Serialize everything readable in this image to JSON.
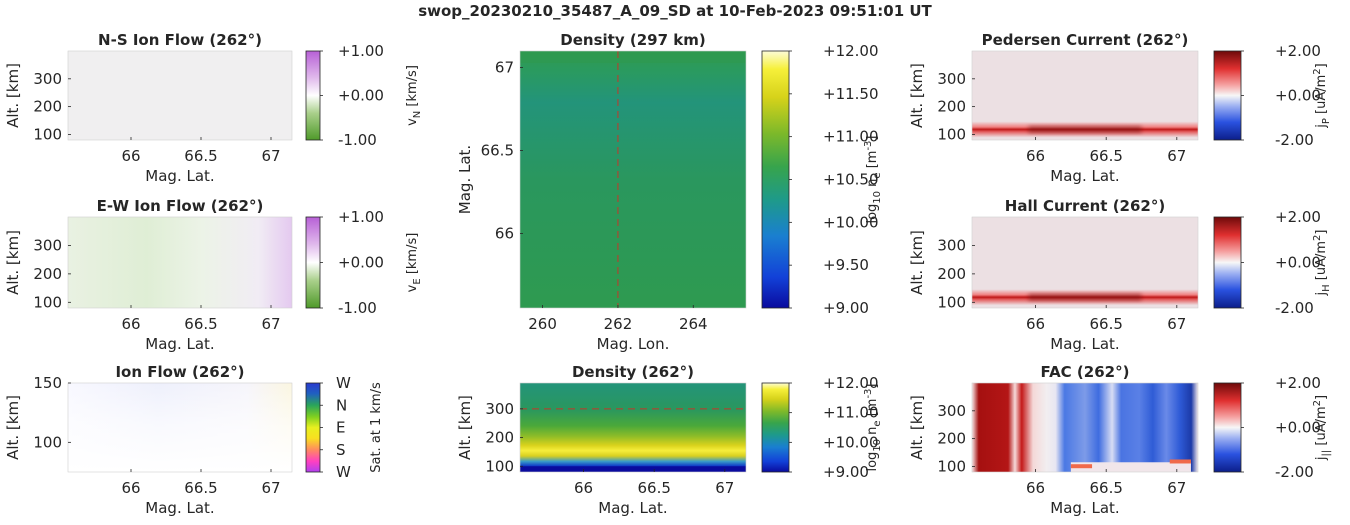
{
  "suptitle": "swop_20230210_35487_A_09_SD at 10-Feb-2023 09:51:01 UT",
  "colors": {
    "axis": "#262626",
    "density_bg": "#2f9a4f",
    "current_bg": "#ece0e3",
    "dashed_line": "#c0392b"
  },
  "chart_data": [
    {
      "id": "ns-ion-flow",
      "type": "heatmap",
      "title": "N-S Ion Flow (262°)",
      "xlabel": "Mag. Lat.",
      "ylabel": "Alt. [km]",
      "xticks": [
        "66",
        "66.5",
        "67"
      ],
      "xtick_values": [
        66,
        66.5,
        67
      ],
      "yticks": [
        "100",
        "200",
        "300"
      ],
      "ytick_values": [
        100,
        200,
        300
      ],
      "xlim": [
        65.55,
        67.15
      ],
      "ylim": [
        80,
        400
      ],
      "colorbar": {
        "label": "v_N [km/s]",
        "label_main": "v",
        "label_sub": "N",
        "label_suffix": " [km/s]",
        "ticks": [
          "+1.00",
          "+0.00",
          "-1.00"
        ],
        "tick_values": [
          1,
          0,
          -1
        ],
        "range": [
          -1,
          1
        ],
        "colormap": "green-white-purple"
      }
    },
    {
      "id": "ew-ion-flow",
      "type": "heatmap",
      "title": "E-W Ion Flow (262°)",
      "xlabel": "Mag. Lat.",
      "ylabel": "Alt. [km]",
      "xticks": [
        "66",
        "66.5",
        "67"
      ],
      "xtick_values": [
        66,
        66.5,
        67
      ],
      "yticks": [
        "100",
        "200",
        "300"
      ],
      "ytick_values": [
        100,
        200,
        300
      ],
      "xlim": [
        65.55,
        67.15
      ],
      "ylim": [
        80,
        400
      ],
      "colorbar": {
        "label": "v_E [km/s]",
        "label_main": "v",
        "label_sub": "E",
        "label_suffix": " [km/s]",
        "ticks": [
          "+1.00",
          "+0.00",
          "-1.00"
        ],
        "tick_values": [
          1,
          0,
          -1
        ],
        "range": [
          -1,
          1
        ],
        "colormap": "green-white-purple"
      }
    },
    {
      "id": "ion-flow",
      "type": "heatmap",
      "title": "Ion Flow (262°)",
      "xlabel": "Mag. Lat.",
      "ylabel": "Alt. [km]",
      "xticks": [
        "66",
        "66.5",
        "67"
      ],
      "xtick_values": [
        66,
        66.5,
        67
      ],
      "yticks": [
        "100",
        "150"
      ],
      "ytick_values": [
        100,
        150
      ],
      "xlim": [
        65.55,
        67.15
      ],
      "ylim": [
        75,
        150
      ],
      "colorbar": {
        "label": "Sat. at 1 km/s",
        "ticks": [
          "W",
          "N",
          "E",
          "S",
          "W"
        ],
        "tick_fractions": [
          1,
          0.75,
          0.5,
          0.25,
          0
        ],
        "colormap": "direction-hue"
      }
    },
    {
      "id": "density-map",
      "type": "heatmap",
      "title": "Density (297 km)",
      "xlabel": "Mag. Lon.",
      "ylabel": "Mag. Lat.",
      "xticks": [
        "260",
        "262",
        "264"
      ],
      "xtick_values": [
        260,
        262,
        264
      ],
      "yticks": [
        "66",
        "66.5",
        "67"
      ],
      "ytick_values": [
        66,
        66.5,
        67
      ],
      "xlim": [
        259.4,
        265.4
      ],
      "ylim": [
        65.55,
        67.1
      ],
      "reference_line_x": 262,
      "colorbar": {
        "label": "log10 n_e [m^-3]",
        "ticks": [
          "+12.00",
          "+11.50",
          "+11.00",
          "+10.50",
          "+10.00",
          "+9.50",
          "+9.00"
        ],
        "tick_values": [
          12,
          11.5,
          11,
          10.5,
          10,
          9.5,
          9
        ],
        "range": [
          9,
          12
        ],
        "colormap": "parula"
      }
    },
    {
      "id": "density-profile",
      "type": "heatmap",
      "title": "Density (262°)",
      "xlabel": "Mag. Lat.",
      "ylabel": "Alt. [km]",
      "xticks": [
        "66",
        "66.5",
        "67"
      ],
      "xtick_values": [
        66,
        66.5,
        67
      ],
      "yticks": [
        "100",
        "200",
        "300"
      ],
      "ytick_values": [
        100,
        200,
        300
      ],
      "xlim": [
        65.55,
        67.15
      ],
      "ylim": [
        80,
        390
      ],
      "reference_line_y": 300,
      "colorbar": {
        "label": "log10 n_e [m^-3]",
        "ticks": [
          "+12.00",
          "+11.00",
          "+10.00",
          "+9.00"
        ],
        "tick_values": [
          12,
          11,
          10,
          9
        ],
        "range": [
          9,
          12
        ],
        "colormap": "parula"
      }
    },
    {
      "id": "pedersen-current",
      "type": "heatmap",
      "title": "Pedersen Current (262°)",
      "xlabel": "Mag. Lat.",
      "ylabel": "Alt. [km]",
      "xticks": [
        "66",
        "66.5",
        "67"
      ],
      "xtick_values": [
        66,
        66.5,
        67
      ],
      "yticks": [
        "100",
        "200",
        "300"
      ],
      "ytick_values": [
        100,
        200,
        300
      ],
      "xlim": [
        65.55,
        67.15
      ],
      "ylim": [
        80,
        400
      ],
      "colorbar": {
        "label": "j_P [uA/m^2]",
        "label_main": "j",
        "label_sub": "P",
        "label_suffix": " [uA/m",
        "label_sup": "2",
        "label_end": "]",
        "ticks": [
          "+2.00",
          "+0.00",
          "-2.00"
        ],
        "tick_values": [
          2,
          0,
          -2
        ],
        "range": [
          -2,
          2
        ],
        "colormap": "blue-white-red"
      }
    },
    {
      "id": "hall-current",
      "type": "heatmap",
      "title": "Hall Current (262°)",
      "xlabel": "Mag. Lat.",
      "ylabel": "Alt. [km]",
      "xticks": [
        "66",
        "66.5",
        "67"
      ],
      "xtick_values": [
        66,
        66.5,
        67
      ],
      "yticks": [
        "100",
        "200",
        "300"
      ],
      "ytick_values": [
        100,
        200,
        300
      ],
      "xlim": [
        65.55,
        67.15
      ],
      "ylim": [
        80,
        400
      ],
      "colorbar": {
        "label": "j_H [uA/m^2]",
        "label_main": "j",
        "label_sub": "H",
        "label_suffix": " [uA/m",
        "label_sup": "2",
        "label_end": "]",
        "ticks": [
          "+2.00",
          "+0.00",
          "-2.00"
        ],
        "tick_values": [
          2,
          0,
          -2
        ],
        "range": [
          -2,
          2
        ],
        "colormap": "blue-white-red"
      }
    },
    {
      "id": "fac",
      "type": "heatmap",
      "title": "FAC (262°)",
      "xlabel": "Mag. Lat.",
      "ylabel": "Alt. [km]",
      "xticks": [
        "66",
        "66.5",
        "67"
      ],
      "xtick_values": [
        66,
        66.5,
        67
      ],
      "yticks": [
        "100",
        "200",
        "300"
      ],
      "ytick_values": [
        100,
        200,
        300
      ],
      "xlim": [
        65.55,
        67.15
      ],
      "ylim": [
        80,
        400
      ],
      "colorbar": {
        "label": "j_|| [uA/m^2]",
        "label_main": "j",
        "label_sub": "||",
        "label_suffix": " [uA/m",
        "label_sup": "2",
        "label_end": "]",
        "ticks": [
          "+2.00",
          "+0.00",
          "-2.00"
        ],
        "tick_values": [
          2,
          0,
          -2
        ],
        "range": [
          -2,
          2
        ],
        "colormap": "blue-white-red"
      }
    }
  ]
}
